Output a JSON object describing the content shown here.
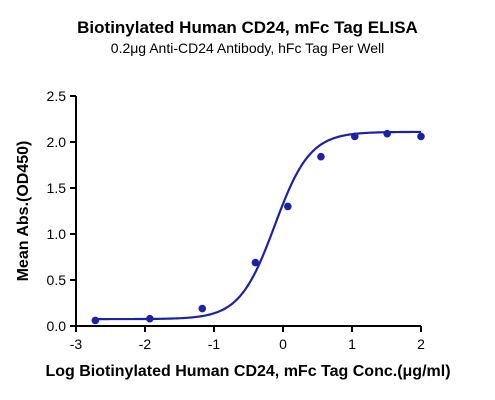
{
  "chart_data": {
    "type": "scatter",
    "title": "Biotinylated Human CD24, mFc Tag ELISA",
    "subtitle": "0.2μg Anti-CD24 Antibody, hFc Tag Per Well",
    "xlabel": "Log Biotinylated Human CD24, mFc Tag Conc.(μg/ml)",
    "ylabel": "Mean Abs.(OD450)",
    "xlim": [
      -3,
      2
    ],
    "ylim": [
      0,
      2.5
    ],
    "x_ticks": [
      "-3",
      "-2",
      "-1",
      "0",
      "1",
      "2"
    ],
    "y_ticks": [
      "0.0",
      "0.5",
      "1.0",
      "1.5",
      "2.0",
      "2.5"
    ],
    "grid": false,
    "legend": "none",
    "series": [
      {
        "x": [
          -2.72,
          -1.93,
          -1.17,
          -0.4,
          0.07,
          0.55,
          1.04,
          1.51,
          2.0
        ],
        "y": [
          0.06,
          0.08,
          0.19,
          0.69,
          1.3,
          1.84,
          2.06,
          2.09,
          2.06
        ],
        "color": "#1a23a8",
        "fit": {
          "model": "4PL",
          "bottom": 0.075,
          "top": 2.11,
          "logEC50": -0.12,
          "hill": 1.7
        }
      }
    ]
  }
}
